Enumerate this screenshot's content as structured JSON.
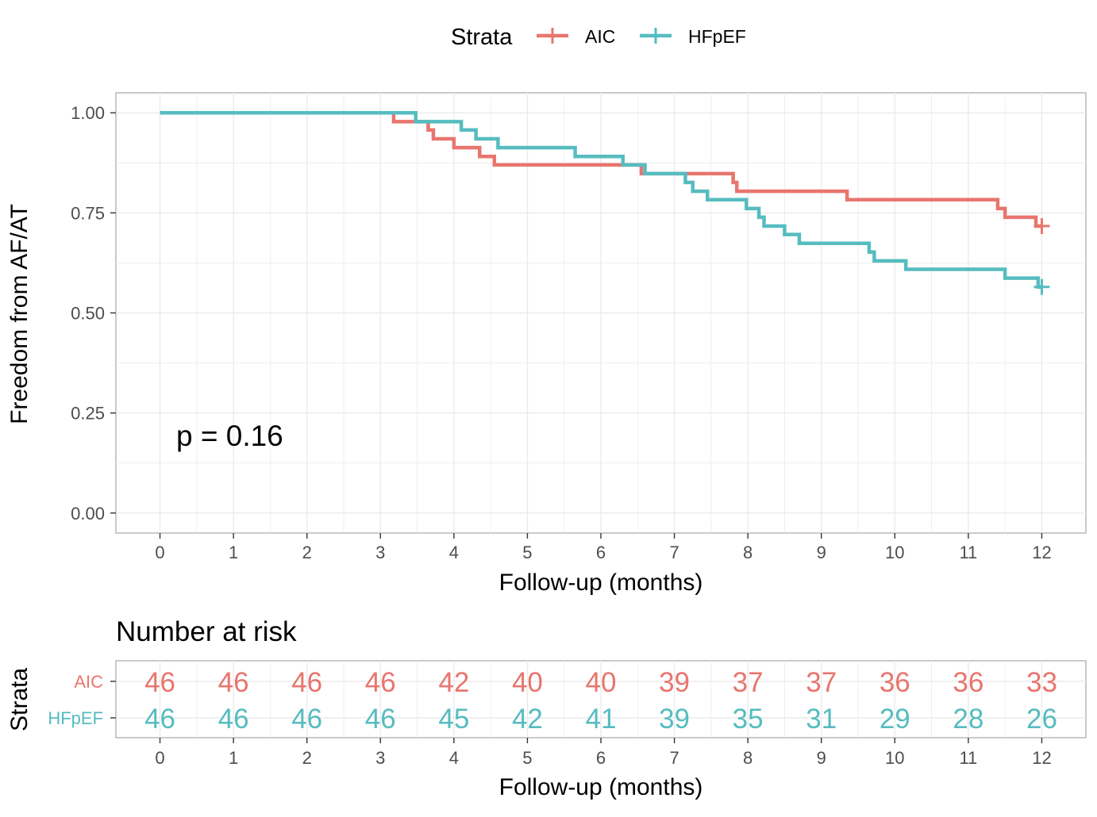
{
  "chart_data": [
    {
      "type": "line",
      "subtype": "kaplan-meier",
      "title": "",
      "xlabel": "Follow-up (months)",
      "ylabel": "Freedom from AF/AT",
      "xlim": [
        -0.6,
        12.6
      ],
      "ylim": [
        -0.05,
        1.05
      ],
      "x_ticks": [
        "0",
        "1",
        "2",
        "3",
        "4",
        "5",
        "6",
        "7",
        "8",
        "9",
        "10",
        "11",
        "12"
      ],
      "y_ticks": [
        "0.00",
        "0.25",
        "0.50",
        "0.75",
        "1.00"
      ],
      "grid": true,
      "legend": {
        "title": "Strata",
        "position": "top"
      },
      "annotation": "p = 0.16",
      "series": [
        {
          "name": "AIC",
          "color": "#E8756E",
          "x": [
            0,
            3.18,
            3.65,
            3.72,
            4.0,
            4.35,
            4.55,
            6.3,
            6.55,
            7.2,
            7.8,
            7.85,
            9.35,
            11.4,
            11.5,
            11.92,
            12.0
          ],
          "y": [
            1.0,
            0.978,
            0.957,
            0.935,
            0.913,
            0.891,
            0.87,
            0.87,
            0.848,
            0.848,
            0.826,
            0.804,
            0.783,
            0.761,
            0.739,
            0.717,
            0.717
          ],
          "censor": [
            [
              12.0,
              0.717
            ]
          ]
        },
        {
          "name": "HFpEF",
          "color": "#56BCC0",
          "x": [
            0,
            3.48,
            4.1,
            4.3,
            4.6,
            5.65,
            6.3,
            6.6,
            7.15,
            7.25,
            7.45,
            7.98,
            8.15,
            8.22,
            8.5,
            8.7,
            9.65,
            9.72,
            10.15,
            11.5,
            11.95,
            12.0
          ],
          "y": [
            1.0,
            0.978,
            0.957,
            0.935,
            0.913,
            0.891,
            0.87,
            0.848,
            0.826,
            0.804,
            0.783,
            0.761,
            0.739,
            0.717,
            0.696,
            0.674,
            0.652,
            0.63,
            0.609,
            0.587,
            0.565,
            0.565
          ],
          "censor": [
            [
              12.0,
              0.565
            ]
          ]
        }
      ]
    },
    {
      "type": "table",
      "title": "Number at risk",
      "xlabel": "Follow-up (months)",
      "ylabel": "Strata",
      "x": [
        0,
        1,
        2,
        3,
        4,
        5,
        6,
        7,
        8,
        9,
        10,
        11,
        12
      ],
      "x_ticks": [
        "0",
        "1",
        "2",
        "3",
        "4",
        "5",
        "6",
        "7",
        "8",
        "9",
        "10",
        "11",
        "12"
      ],
      "rows": [
        {
          "name": "AIC",
          "color": "#E8756E",
          "values": [
            "46",
            "46",
            "46",
            "46",
            "42",
            "40",
            "40",
            "39",
            "37",
            "37",
            "36",
            "36",
            "33"
          ]
        },
        {
          "name": "HFpEF",
          "color": "#56BCC0",
          "values": [
            "46",
            "46",
            "46",
            "46",
            "45",
            "42",
            "41",
            "39",
            "35",
            "31",
            "29",
            "28",
            "26"
          ]
        }
      ]
    }
  ]
}
